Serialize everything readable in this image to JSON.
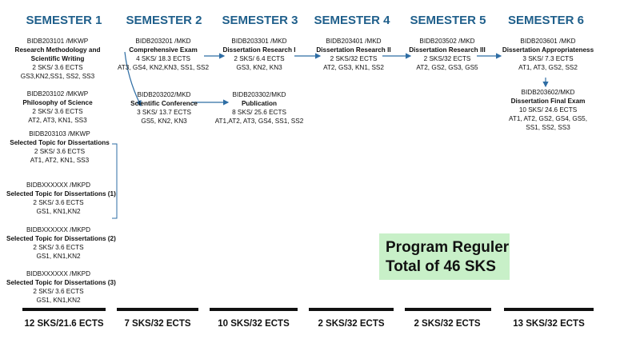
{
  "semesters": [
    {
      "title": "SEMESTER 1",
      "total": "12 SKS/21.6 ECTS"
    },
    {
      "title": "SEMESTER 2",
      "total": "7 SKS/32 ECTS"
    },
    {
      "title": "SEMESTER 3",
      "total": "10 SKS/32 ECTS"
    },
    {
      "title": "SEMESTER 4",
      "total": "2 SKS/32 ECTS"
    },
    {
      "title": "SEMESTER 5",
      "total": "2 SKS/32 ECTS"
    },
    {
      "title": "SEMESTER 6",
      "total": "13 SKS/32 ECTS"
    }
  ],
  "courses": {
    "s1c1": {
      "code": "BIDB203101 /MKWP",
      "name1": "Research Methodology and",
      "name2": "Scientific Writing",
      "credits": "2 SKS/ 3.6 ECTS",
      "outcomes": "GS3,KN2,SS1, SS2, SS3"
    },
    "s1c2": {
      "code": "BIDB203102 /MKWP",
      "name": "Philosophy of Science",
      "credits": "2 SKS/ 3.6 ECTS",
      "outcomes": "AT2, AT3, KN1, SS3"
    },
    "s1c3": {
      "code": "BIDB203103 /MKWP",
      "name": "Selected Topic for Dissertations",
      "credits": "2 SKS/ 3.6 ECTS",
      "outcomes": "AT1, AT2, KN1, SS3"
    },
    "s1c4": {
      "code": "BIDBXXXXXX /MKPD",
      "name": "Selected Topic for Dissertations (1)",
      "credits": "2 SKS/ 3.6 ECTS",
      "outcomes": "GS1, KN1,KN2"
    },
    "s1c5": {
      "code": "BIDBXXXXXX /MKPD",
      "name": "Selected Topic for Dissertations (2)",
      "credits": "2 SKS/ 3.6 ECTS",
      "outcomes": "GS1, KN1,KN2"
    },
    "s1c6": {
      "code": "BIDBXXXXXX /MKPD",
      "name": "Selected Topic for Dissertations (3)",
      "credits": "2 SKS/ 3.6 ECTS",
      "outcomes": "GS1, KN1,KN2"
    },
    "s2c1": {
      "code": "BIDB203201 /MKD",
      "name": "Comprehensive Exam",
      "credits": "4 SKS/ 18.3 ECTS",
      "outcomes": "AT3, GS4, KN2,KN3, SS1, SS2"
    },
    "s2c2": {
      "code": "BIDB203202/MKD",
      "name": "Scientific Conference",
      "credits": "3 SKS/ 13.7 ECTS",
      "outcomes": "GS5, KN2, KN3"
    },
    "s3c1": {
      "code": "BIDB203301 /MKD",
      "name": "Dissertation Research I",
      "credits": "2 SKS/ 6.4 ECTS",
      "outcomes": "GS3, KN2, KN3"
    },
    "s3c2": {
      "code": "BIDB203302/MKD",
      "name": "Publication",
      "credits": "8 SKS/ 25.6 ECTS",
      "outcomes": "AT1,AT2, AT3, GS4, SS1, SS2"
    },
    "s4c1": {
      "code": "BIDB203401 /MKD",
      "name": "Dissertation Research II",
      "credits": "2 SKS/32 ECTS",
      "outcomes": "AT2, GS3, KN1, SS2"
    },
    "s5c1": {
      "code": "BIDB203502 /MKD",
      "name": "Dissertation Research III",
      "credits": "2 SKS/32 ECTS",
      "outcomes": "AT2, GS2, GS3, GS5"
    },
    "s6c1": {
      "code": "BIDB203601 /MKD",
      "name": "Dissertation Appropriateness",
      "credits": "3 SKS/ 7.3 ECTS",
      "outcomes": "AT1, AT3, GS2, SS2"
    },
    "s6c2": {
      "code": "BIDB203602/MKD",
      "name": "Dissertation Final Exam",
      "credits": "10 SKS/ 24.6 ECTS",
      "outcomes1": "AT1, AT2, GS2, GS4, GS5,",
      "outcomes2": "SS1, SS2, SS3"
    }
  },
  "program": {
    "line1": "Program Reguler",
    "line2": "Total of 46 SKS"
  },
  "colors": {
    "title": "#1f5f8b",
    "arrow": "#2e6da4",
    "program_bg": "#c8f0c8"
  }
}
